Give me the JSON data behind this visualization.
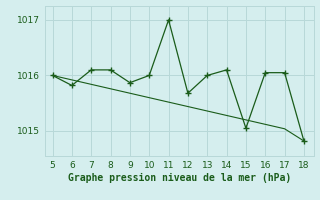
{
  "x": [
    5,
    6,
    7,
    8,
    9,
    10,
    11,
    12,
    13,
    14,
    15,
    16,
    17,
    18
  ],
  "y_line": [
    1016.0,
    1015.82,
    1016.1,
    1016.1,
    1015.87,
    1016.0,
    1017.0,
    1015.68,
    1016.0,
    1016.1,
    1015.05,
    1016.05,
    1016.05,
    1014.82
  ],
  "y_trend": [
    1016.0,
    1015.92,
    1015.84,
    1015.76,
    1015.68,
    1015.6,
    1015.52,
    1015.44,
    1015.36,
    1015.28,
    1015.2,
    1015.12,
    1015.04,
    1014.82
  ],
  "line_color": "#1a5c1a",
  "trend_color": "#1a5c1a",
  "bg_color": "#d5eeee",
  "grid_color": "#b8d8d8",
  "xlabel": "Graphe pression niveau de la mer (hPa)",
  "xlabel_color": "#1a5c1a",
  "tick_color": "#1a5c1a",
  "yticks": [
    1015,
    1016,
    1017
  ],
  "xticks": [
    5,
    6,
    7,
    8,
    9,
    10,
    11,
    12,
    13,
    14,
    15,
    16,
    17,
    18
  ],
  "ylim": [
    1014.55,
    1017.25
  ],
  "xlim": [
    4.6,
    18.5
  ]
}
